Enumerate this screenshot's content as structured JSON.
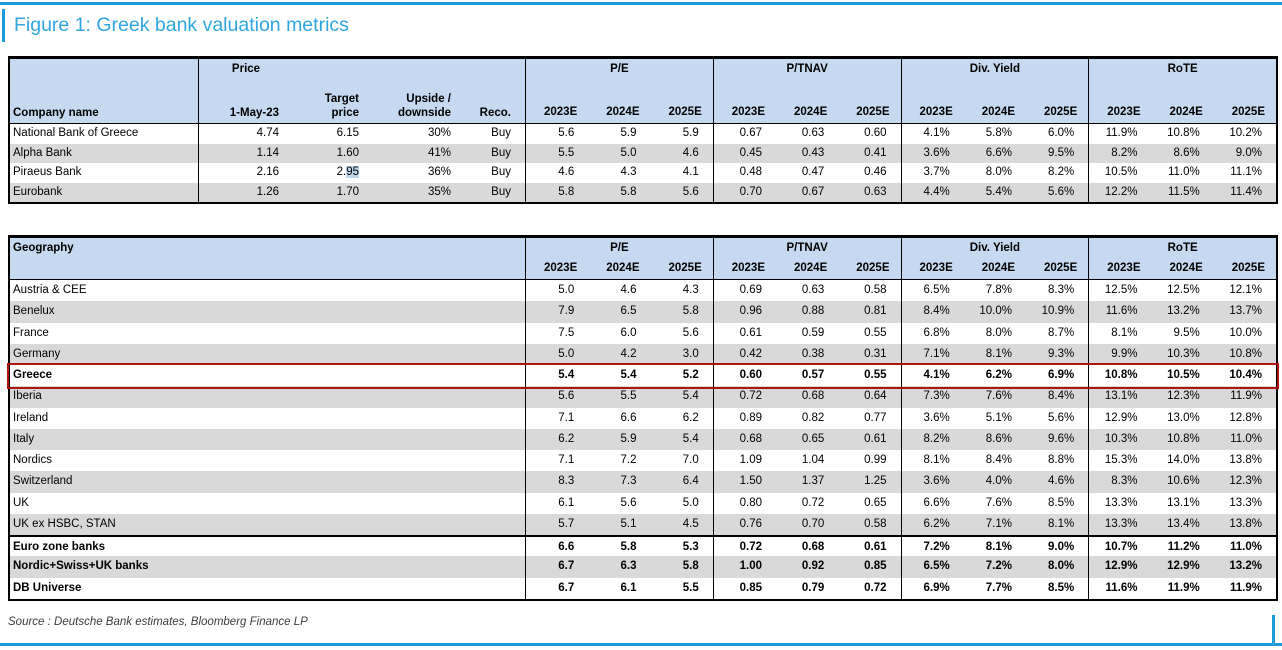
{
  "figure_title": "Figure 1: Greek bank valuation metrics",
  "source_note": "Source : Deutsche Bank estimates, Bloomberg Finance LP",
  "colors": {
    "accent_blue": "#1b9cd8",
    "title_blue": "#2fa6dd",
    "header_bg": "#c5d9f1",
    "row_alt_bg": "#d9d9d9",
    "greece_box_red": "#b01412",
    "selection_highlight": "#bdd7ee"
  },
  "table1": {
    "company_header": "Company name",
    "price_top": "Price",
    "price_bottom": "1-May-23",
    "target_top": "Target",
    "target_bottom": "price",
    "upside_top": "Upside /",
    "upside_bottom": "downside",
    "reco_header": "Reco.",
    "groups": [
      "P/E",
      "P/TNAV",
      "Div. Yield",
      "RoTE"
    ],
    "years": [
      "2023E",
      "2024E",
      "2025E"
    ],
    "rows": [
      {
        "name": "National Bank of Greece",
        "price": "4.74",
        "target": "6.15",
        "upside": "30%",
        "reco": "Buy",
        "values": [
          "5.6",
          "5.9",
          "5.9",
          "0.67",
          "0.63",
          "0.60",
          "4.1%",
          "5.8%",
          "6.0%",
          "11.9%",
          "10.8%",
          "10.2%"
        ]
      },
      {
        "name": "Alpha Bank",
        "price": "1.14",
        "target": "1.60",
        "upside": "41%",
        "reco": "Buy",
        "values": [
          "5.5",
          "5.0",
          "4.6",
          "0.45",
          "0.43",
          "0.41",
          "3.6%",
          "6.6%",
          "9.5%",
          "8.2%",
          "8.6%",
          "9.0%"
        ]
      },
      {
        "name": "Piraeus Bank",
        "price": "2.16",
        "target": "2.95",
        "target_sel": "95",
        "upside": "36%",
        "reco": "Buy",
        "values": [
          "4.6",
          "4.3",
          "4.1",
          "0.48",
          "0.47",
          "0.46",
          "3.7%",
          "8.0%",
          "8.2%",
          "10.5%",
          "11.0%",
          "11.1%"
        ]
      },
      {
        "name": "Eurobank",
        "price": "1.26",
        "target": "1.70",
        "upside": "35%",
        "reco": "Buy",
        "values": [
          "5.8",
          "5.8",
          "5.6",
          "0.70",
          "0.67",
          "0.63",
          "4.4%",
          "5.4%",
          "5.6%",
          "12.2%",
          "11.5%",
          "11.4%"
        ]
      }
    ]
  },
  "table2": {
    "geography_header": "Geography",
    "groups": [
      "P/E",
      "P/TNAV",
      "Div. Yield",
      "RoTE"
    ],
    "years": [
      "2023E",
      "2024E",
      "2025E"
    ],
    "rows": [
      {
        "name": "Austria & CEE",
        "values": [
          "5.0",
          "4.6",
          "4.3",
          "0.69",
          "0.63",
          "0.58",
          "6.5%",
          "7.8%",
          "8.3%",
          "12.5%",
          "12.5%",
          "12.1%"
        ]
      },
      {
        "name": "Benelux",
        "values": [
          "7.9",
          "6.5",
          "5.8",
          "0.96",
          "0.88",
          "0.81",
          "8.4%",
          "10.0%",
          "10.9%",
          "11.6%",
          "13.2%",
          "13.7%"
        ]
      },
      {
        "name": "France",
        "values": [
          "7.5",
          "6.0",
          "5.6",
          "0.61",
          "0.59",
          "0.55",
          "6.8%",
          "8.0%",
          "8.7%",
          "8.1%",
          "9.5%",
          "10.0%"
        ]
      },
      {
        "name": "Germany",
        "values": [
          "5.0",
          "4.2",
          "3.0",
          "0.42",
          "0.38",
          "0.31",
          "7.1%",
          "8.1%",
          "9.3%",
          "9.9%",
          "10.3%",
          "10.8%"
        ]
      },
      {
        "name": "Greece",
        "bold": true,
        "box": true,
        "values": [
          "5.4",
          "5.4",
          "5.2",
          "0.60",
          "0.57",
          "0.55",
          "4.1%",
          "6.2%",
          "6.9%",
          "10.8%",
          "10.5%",
          "10.4%"
        ]
      },
      {
        "name": "Iberia",
        "values": [
          "5.6",
          "5.5",
          "5.4",
          "0.72",
          "0.68",
          "0.64",
          "7.3%",
          "7.6%",
          "8.4%",
          "13.1%",
          "12.3%",
          "11.9%"
        ]
      },
      {
        "name": "Ireland",
        "values": [
          "7.1",
          "6.6",
          "6.2",
          "0.89",
          "0.82",
          "0.77",
          "3.6%",
          "5.1%",
          "5.6%",
          "12.9%",
          "13.0%",
          "12.8%"
        ]
      },
      {
        "name": "Italy",
        "values": [
          "6.2",
          "5.9",
          "5.4",
          "0.68",
          "0.65",
          "0.61",
          "8.2%",
          "8.6%",
          "9.6%",
          "10.3%",
          "10.8%",
          "11.0%"
        ]
      },
      {
        "name": "Nordics",
        "values": [
          "7.1",
          "7.2",
          "7.0",
          "1.09",
          "1.04",
          "0.99",
          "8.1%",
          "8.4%",
          "8.8%",
          "15.3%",
          "14.0%",
          "13.8%"
        ]
      },
      {
        "name": "Switzerland",
        "values": [
          "8.3",
          "7.3",
          "6.4",
          "1.50",
          "1.37",
          "1.25",
          "3.6%",
          "4.0%",
          "4.6%",
          "8.3%",
          "10.6%",
          "12.3%"
        ]
      },
      {
        "name": "UK",
        "values": [
          "6.1",
          "5.6",
          "5.0",
          "0.80",
          "0.72",
          "0.65",
          "6.6%",
          "7.6%",
          "8.5%",
          "13.3%",
          "13.1%",
          "13.3%"
        ]
      },
      {
        "name": "UK ex HSBC, STAN",
        "values": [
          "5.7",
          "5.1",
          "4.5",
          "0.76",
          "0.70",
          "0.58",
          "6.2%",
          "7.1%",
          "8.1%",
          "13.3%",
          "13.4%",
          "13.8%"
        ]
      },
      {
        "name": "Euro zone banks",
        "bold": true,
        "topline": true,
        "values": [
          "6.6",
          "5.8",
          "5.3",
          "0.72",
          "0.68",
          "0.61",
          "7.2%",
          "8.1%",
          "9.0%",
          "10.7%",
          "11.2%",
          "11.0%"
        ]
      },
      {
        "name": "Nordic+Swiss+UK banks",
        "bold": true,
        "values": [
          "6.7",
          "6.3",
          "5.8",
          "1.00",
          "0.92",
          "0.85",
          "6.5%",
          "7.2%",
          "8.0%",
          "12.9%",
          "12.9%",
          "13.2%"
        ]
      },
      {
        "name": "DB Universe",
        "bold": true,
        "values": [
          "6.7",
          "6.1",
          "5.5",
          "0.85",
          "0.79",
          "0.72",
          "6.9%",
          "7.7%",
          "8.5%",
          "11.6%",
          "11.9%",
          "11.9%"
        ]
      }
    ]
  }
}
